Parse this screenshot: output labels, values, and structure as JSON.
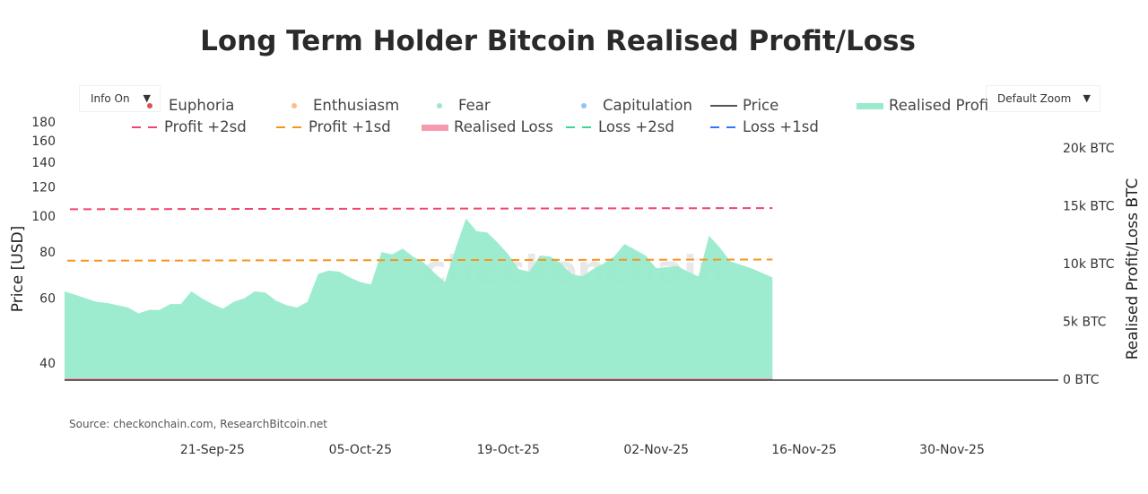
{
  "title": "Long Term Holder Bitcoin Realised Profit/Loss",
  "controls": {
    "info_label": "Info On",
    "zoom_label": "Default Zoom",
    "arrow": "▼"
  },
  "source": "Source: checkonchain.com, ResearchBitcoin.net",
  "watermark": "checkonchain",
  "legend": [
    {
      "label": "Euphoria",
      "kind": "dot",
      "color": "#d9534f"
    },
    {
      "label": "Enthusiasm",
      "kind": "dot",
      "color": "#f7c08a"
    },
    {
      "label": "Fear",
      "kind": "dot",
      "color": "#9ee7cb"
    },
    {
      "label": "Capitulation",
      "kind": "dot",
      "color": "#8ec5f5"
    },
    {
      "label": "Price",
      "kind": "line",
      "color": "#555555"
    },
    {
      "label": "Realised Profi",
      "kind": "bar",
      "color": "#99ebcc"
    },
    {
      "label": "Profit +2sd",
      "kind": "dash",
      "color": "#f0466e"
    },
    {
      "label": "Profit +1sd",
      "kind": "dash",
      "color": "#f7941d"
    },
    {
      "label": "Realised Loss",
      "kind": "bar",
      "color": "#f79aae"
    },
    {
      "label": "Loss +2sd",
      "kind": "dash",
      "color": "#3dd68f"
    },
    {
      "label": "Loss +1sd",
      "kind": "dash",
      "color": "#2b7bf0"
    }
  ],
  "chart_data": {
    "type": "area",
    "title": "Long Term Holder Bitcoin Realised Profit/Loss",
    "ylabel_left": "Price [USD]",
    "ylabel_right": "Realised Profit/Loss BTC",
    "left_axis": {
      "scale": "log",
      "ticks": [
        "40",
        "60",
        "80",
        "100",
        "120",
        "140",
        "160",
        "180"
      ]
    },
    "right_axis": {
      "range": [
        0,
        20000
      ],
      "ticks": [
        "0 BTC",
        "5k BTC",
        "10k BTC",
        "15k BTC",
        "20k BTC"
      ]
    },
    "x_ticks": [
      "21-Sep-25",
      "05-Oct-25",
      "19-Oct-25",
      "02-Nov-25",
      "16-Nov-25",
      "30-Nov-25"
    ],
    "x_range": [
      "2025-09-07",
      "2025-12-09"
    ],
    "x_start": "2025-09-07",
    "realised_profit_btc": [
      7600,
      7300,
      7000,
      6700,
      6600,
      6400,
      6200,
      5700,
      6000,
      6000,
      6500,
      6500,
      7600,
      7000,
      6500,
      6100,
      6700,
      7000,
      7600,
      7500,
      6800,
      6400,
      6200,
      6700,
      9100,
      9400,
      9300,
      8800,
      8400,
      8200,
      11000,
      10800,
      11300,
      10600,
      10100,
      9200,
      8400,
      11300,
      13900,
      12800,
      12700,
      11800,
      10800,
      9500,
      9300,
      10700,
      10600,
      10000,
      9100,
      8900,
      9500,
      10000,
      10600,
      11700,
      11200,
      10700,
      9600,
      9700,
      9800,
      9300,
      8900,
      12400,
      11400,
      10200,
      9900,
      9600,
      9200,
      8800
    ],
    "realised_loss_btc_approx": 0,
    "profit_2sd_btc": [
      14700,
      14800
    ],
    "profit_1sd_btc": [
      10250,
      10350
    ],
    "colors": {
      "profit": "#99ebcc",
      "loss": "#f79aae",
      "profit_2sd": "#f0466e",
      "profit_1sd": "#f7941d",
      "price": "#333333"
    }
  }
}
